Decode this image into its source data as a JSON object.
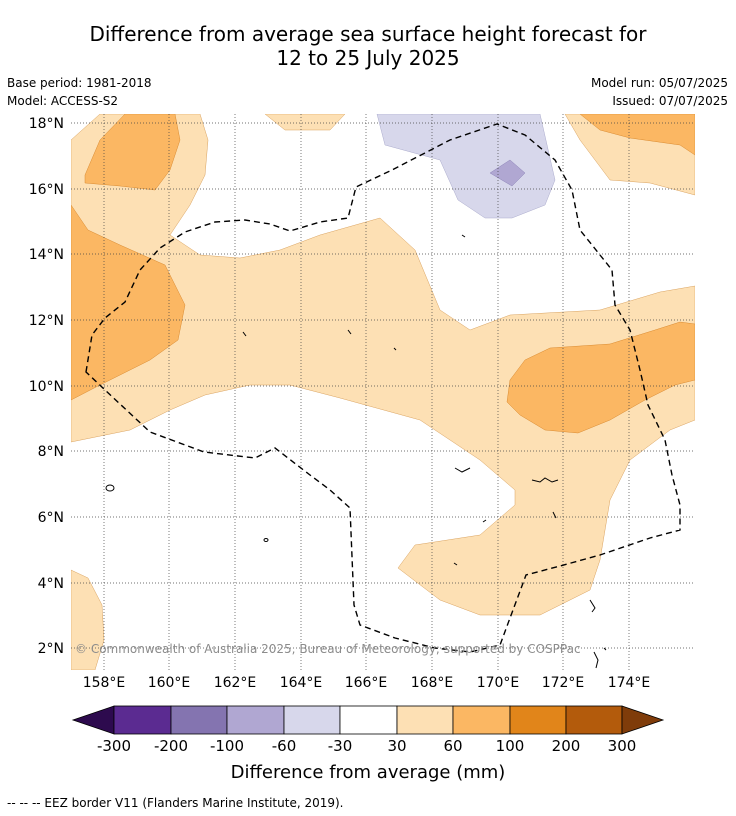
{
  "title_line1": "Difference from average sea surface height forecast for",
  "title_line2": "12 to 25 July 2025",
  "base_period": "Base period: 1981-2018",
  "model": "Model: ACCESS-S2",
  "model_run": "Model run: 05/07/2025",
  "issued": "Issued: 07/07/2025",
  "copyright": "© Commonwealth of Australia 2025, Bureau of Meteorology; supported by COSPPac",
  "colorbar": {
    "title": "Difference from average (mm)",
    "ticks": [
      "-300",
      "-200",
      "-100",
      "-60",
      "-30",
      "30",
      "60",
      "100",
      "200",
      "300"
    ],
    "colors": [
      "#2d0a4e",
      "#5b2b91",
      "#8474b0",
      "#b0a7d2",
      "#d7d7eb",
      "#ffffff",
      "#fde0b4",
      "#fbb763",
      "#e1851a",
      "#b35b0c",
      "#7f3c0a"
    ]
  },
  "footer": "--  --  -- EEZ border V11 (Flanders Marine Institute, 2019).",
  "map": {
    "lat_labels": [
      "18°N",
      "16°N",
      "14°N",
      "12°N",
      "10°N",
      "8°N",
      "6°N",
      "4°N",
      "2°N"
    ],
    "lon_labels": [
      "158°E",
      "160°E",
      "162°E",
      "164°E",
      "166°E",
      "168°E",
      "170°E",
      "172°E",
      "174°E"
    ],
    "lat_values": [
      18,
      16,
      14,
      12,
      10,
      8,
      6,
      4,
      2
    ],
    "lon_values": [
      158,
      160,
      162,
      164,
      166,
      168,
      170,
      172,
      174
    ],
    "extent": {
      "lon_min": 157,
      "lon_max": 176,
      "lat_min": 1.5,
      "lat_max": 18.5
    },
    "grid": true
  }
}
